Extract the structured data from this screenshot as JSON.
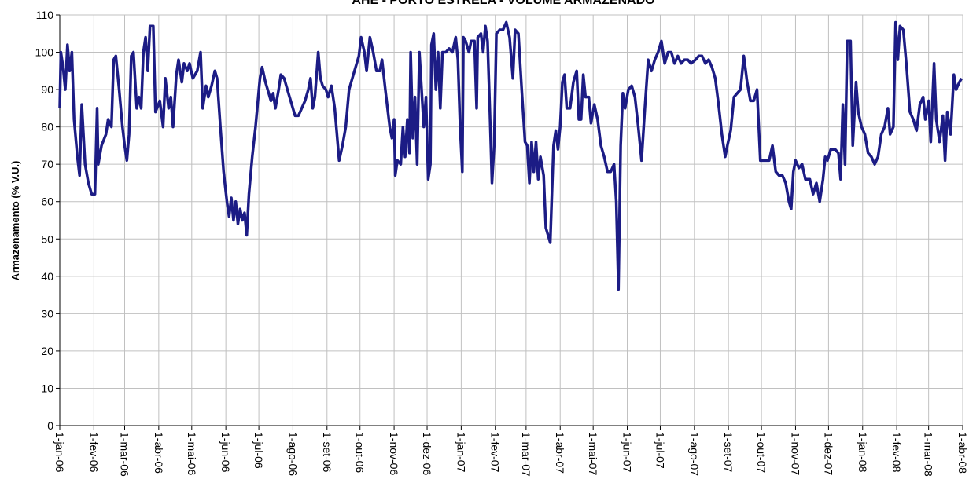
{
  "chart_data": {
    "type": "line",
    "title": "AHE - PORTO ESTRELA - VOLUME ARMAZENADO",
    "y_label": "Armazenamento (% V.U.)",
    "x": [
      "2006-01-01",
      "2006-01-02",
      "2006-01-04",
      "2006-01-06",
      "2006-01-08",
      "2006-01-10",
      "2006-01-12",
      "2006-01-14",
      "2006-01-17",
      "2006-01-19",
      "2006-01-21",
      "2006-01-24",
      "2006-01-27",
      "2006-01-30",
      "2006-02-02",
      "2006-02-04",
      "2006-02-05",
      "2006-02-08",
      "2006-02-12",
      "2006-02-14",
      "2006-02-17",
      "2006-02-19",
      "2006-02-21",
      "2006-02-24",
      "2006-02-27",
      "2006-03-01",
      "2006-03-03",
      "2006-03-05",
      "2006-03-07",
      "2006-03-09",
      "2006-03-12",
      "2006-03-14",
      "2006-03-16",
      "2006-03-18",
      "2006-03-20",
      "2006-03-22",
      "2006-03-24",
      "2006-03-27",
      "2006-03-29",
      "2006-04-02",
      "2006-04-05",
      "2006-04-07",
      "2006-04-10",
      "2006-04-12",
      "2006-04-14",
      "2006-04-17",
      "2006-04-19",
      "2006-04-22",
      "2006-04-24",
      "2006-04-27",
      "2006-04-29",
      "2006-05-02",
      "2006-05-06",
      "2006-05-09",
      "2006-05-11",
      "2006-05-14",
      "2006-05-16",
      "2006-05-19",
      "2006-05-22",
      "2006-05-24",
      "2006-05-27",
      "2006-05-30",
      "2006-06-02",
      "2006-06-04",
      "2006-06-06",
      "2006-06-08",
      "2006-06-10",
      "2006-06-12",
      "2006-06-14",
      "2006-06-16",
      "2006-06-18",
      "2006-06-20",
      "2006-06-22",
      "2006-06-25",
      "2006-06-28",
      "2006-07-02",
      "2006-07-04",
      "2006-07-07",
      "2006-07-10",
      "2006-07-12",
      "2006-07-14",
      "2006-07-16",
      "2006-07-19",
      "2006-07-21",
      "2006-07-24",
      "2006-07-27",
      "2006-07-30",
      "2006-08-03",
      "2006-08-06",
      "2006-08-09",
      "2006-08-12",
      "2006-08-15",
      "2006-08-17",
      "2006-08-19",
      "2006-08-21",
      "2006-08-24",
      "2006-08-26",
      "2006-08-28",
      "2006-08-31",
      "2006-09-02",
      "2006-09-05",
      "2006-09-08",
      "2006-09-10",
      "2006-09-12",
      "2006-09-15",
      "2006-09-18",
      "2006-09-21",
      "2006-09-24",
      "2006-09-27",
      "2006-09-30",
      "2006-10-02",
      "2006-10-05",
      "2006-10-07",
      "2006-10-10",
      "2006-10-13",
      "2006-10-16",
      "2006-10-19",
      "2006-10-21",
      "2006-10-24",
      "2006-10-26",
      "2006-10-28",
      "2006-10-30",
      "2006-11-01",
      "2006-11-02",
      "2006-11-04",
      "2006-11-07",
      "2006-11-09",
      "2006-11-11",
      "2006-11-13",
      "2006-11-15",
      "2006-11-16",
      "2006-11-18",
      "2006-11-20",
      "2006-11-22",
      "2006-11-24",
      "2006-11-26",
      "2006-11-28",
      "2006-11-30",
      "2006-12-02",
      "2006-12-04",
      "2006-12-05",
      "2006-12-07",
      "2006-12-09",
      "2006-12-11",
      "2006-12-13",
      "2006-12-15",
      "2006-12-18",
      "2006-12-21",
      "2006-12-24",
      "2006-12-27",
      "2006-12-29",
      "2006-12-31",
      "2007-01-02",
      "2007-01-03",
      "2007-01-05",
      "2007-01-08",
      "2007-01-10",
      "2007-01-13",
      "2007-01-15",
      "2007-01-16",
      "2007-01-19",
      "2007-01-21",
      "2007-01-23",
      "2007-01-25",
      "2007-01-27",
      "2007-01-29",
      "2007-01-31",
      "2007-02-02",
      "2007-02-05",
      "2007-02-08",
      "2007-02-11",
      "2007-02-14",
      "2007-02-17",
      "2007-02-19",
      "2007-02-22",
      "2007-02-25",
      "2007-02-28",
      "2007-03-02",
      "2007-03-04",
      "2007-03-06",
      "2007-03-08",
      "2007-03-10",
      "2007-03-12",
      "2007-03-14",
      "2007-03-17",
      "2007-03-19",
      "2007-03-21",
      "2007-03-23",
      "2007-03-26",
      "2007-03-28",
      "2007-03-30",
      "2007-04-01",
      "2007-04-03",
      "2007-04-05",
      "2007-04-07",
      "2007-04-10",
      "2007-04-13",
      "2007-04-16",
      "2007-04-18",
      "2007-04-20",
      "2007-04-22",
      "2007-04-24",
      "2007-04-27",
      "2007-04-29",
      "2007-05-02",
      "2007-05-05",
      "2007-05-08",
      "2007-05-11",
      "2007-05-14",
      "2007-05-17",
      "2007-05-20",
      "2007-05-22",
      "2007-05-24",
      "2007-05-26",
      "2007-05-28",
      "2007-05-30",
      "2007-06-02",
      "2007-06-05",
      "2007-06-08",
      "2007-06-11",
      "2007-06-14",
      "2007-06-17",
      "2007-06-20",
      "2007-06-23",
      "2007-06-26",
      "2007-06-29",
      "2007-07-02",
      "2007-07-05",
      "2007-07-08",
      "2007-07-11",
      "2007-07-14",
      "2007-07-17",
      "2007-07-20",
      "2007-07-23",
      "2007-07-26",
      "2007-07-29",
      "2007-08-02",
      "2007-08-05",
      "2007-08-08",
      "2007-08-11",
      "2007-08-14",
      "2007-08-17",
      "2007-08-20",
      "2007-08-23",
      "2007-08-26",
      "2007-08-29",
      "2007-08-31",
      "2007-09-03",
      "2007-09-06",
      "2007-09-09",
      "2007-09-12",
      "2007-09-15",
      "2007-09-18",
      "2007-09-21",
      "2007-09-24",
      "2007-09-27",
      "2007-09-30",
      "2007-10-04",
      "2007-10-08",
      "2007-10-11",
      "2007-10-14",
      "2007-10-17",
      "2007-10-20",
      "2007-10-23",
      "2007-10-26",
      "2007-10-28",
      "2007-10-30",
      "2007-11-01",
      "2007-11-04",
      "2007-11-07",
      "2007-11-10",
      "2007-11-14",
      "2007-11-17",
      "2007-11-20",
      "2007-11-23",
      "2007-11-26",
      "2007-11-28",
      "2007-11-30",
      "2007-12-03",
      "2007-12-07",
      "2007-12-10",
      "2007-12-12",
      "2007-12-14",
      "2007-12-16",
      "2007-12-18",
      "2007-12-21",
      "2007-12-23",
      "2007-12-26",
      "2007-12-28",
      "2007-12-31",
      "2008-01-03",
      "2008-01-06",
      "2008-01-09",
      "2008-01-12",
      "2008-01-15",
      "2008-01-18",
      "2008-01-21",
      "2008-01-24",
      "2008-01-26",
      "2008-01-29",
      "2008-01-31",
      "2008-02-02",
      "2008-02-04",
      "2008-02-07",
      "2008-02-10",
      "2008-02-13",
      "2008-02-16",
      "2008-02-19",
      "2008-02-22",
      "2008-02-25",
      "2008-02-27",
      "2008-03-01",
      "2008-03-03",
      "2008-03-06",
      "2008-03-08",
      "2008-03-11",
      "2008-03-14",
      "2008-03-16",
      "2008-03-18",
      "2008-03-21",
      "2008-03-24",
      "2008-03-26",
      "2008-03-29",
      "2008-03-31"
    ],
    "series": [
      {
        "name": "Armazenamento",
        "color": "#1c1c85",
        "values": [
          85,
          100,
          96,
          90,
          102,
          95,
          100,
          82,
          72,
          67,
          86,
          70,
          65,
          62,
          62,
          85,
          70,
          75,
          78,
          82,
          80,
          98,
          99,
          90,
          80,
          75,
          71,
          78,
          99,
          100,
          85,
          88,
          85,
          100,
          104,
          95,
          107,
          107,
          84,
          87,
          80,
          93,
          85,
          88,
          80,
          94,
          98,
          92,
          97,
          95,
          97,
          93,
          95,
          100,
          85,
          91,
          88,
          91,
          95,
          93,
          80,
          68,
          60,
          56,
          61,
          55,
          60,
          54,
          58,
          55,
          57,
          51,
          62,
          72,
          80,
          93,
          96,
          92,
          89,
          87,
          89,
          85,
          90,
          94,
          93,
          90,
          87,
          83,
          83,
          85,
          87,
          90,
          93,
          85,
          88,
          100,
          93,
          91,
          90,
          88,
          91,
          85,
          78,
          71,
          75,
          80,
          90,
          93,
          96,
          99,
          104,
          100,
          95,
          104,
          100,
          95,
          95,
          98,
          90,
          85,
          80,
          77,
          82,
          67,
          71,
          70,
          80,
          72,
          82,
          73,
          100,
          77,
          88,
          70,
          100,
          90,
          80,
          88,
          66,
          70,
          102,
          105,
          90,
          100,
          85,
          100,
          100,
          101,
          100,
          104,
          98,
          80,
          68,
          104,
          103,
          100,
          103,
          103,
          85,
          104,
          105,
          100,
          107,
          103,
          85,
          65,
          75,
          105,
          106,
          106,
          108,
          104,
          93,
          106,
          105,
          90,
          76,
          75,
          65,
          76,
          68,
          76,
          66,
          72,
          67,
          53,
          51,
          49,
          75,
          79,
          74,
          80,
          92,
          94,
          85,
          85,
          92,
          95,
          82,
          82,
          94,
          88,
          88,
          81,
          86,
          82,
          75,
          72,
          68,
          68,
          70,
          60,
          36.5,
          75,
          89,
          85,
          90,
          91,
          88,
          80,
          71,
          85,
          98,
          95,
          98,
          100,
          103,
          97,
          100,
          100,
          97,
          99,
          97,
          98,
          98,
          97,
          98,
          99,
          99,
          97,
          98,
          96,
          93,
          86,
          78,
          72,
          75,
          79,
          88,
          89,
          90,
          99,
          92,
          87,
          87,
          90,
          71,
          71,
          71,
          75,
          68,
          67,
          67,
          65,
          60,
          58,
          68,
          71,
          69,
          70,
          66,
          66,
          62,
          65,
          60,
          66,
          72,
          71,
          74,
          74,
          73,
          66,
          86,
          70,
          103,
          103,
          75,
          92,
          84,
          80,
          78,
          73,
          72,
          70,
          72,
          78,
          80,
          85,
          78,
          80,
          108,
          98,
          107,
          106,
          96,
          84,
          82,
          79,
          86,
          88,
          82,
          87,
          76,
          97,
          82,
          76,
          83,
          71,
          84,
          78,
          94,
          90,
          92,
          93
        ]
      }
    ],
    "xlim": [
      "2006-01-01",
      "2008-04-01"
    ],
    "xticks": [
      {
        "value": "2006-01-01",
        "label": "1-jan-06"
      },
      {
        "value": "2006-02-01",
        "label": "1-fev-06"
      },
      {
        "value": "2006-03-01",
        "label": "1-mar-06"
      },
      {
        "value": "2006-04-01",
        "label": "1-abr-06"
      },
      {
        "value": "2006-05-01",
        "label": "1-mai-06"
      },
      {
        "value": "2006-06-01",
        "label": "1-jun-06"
      },
      {
        "value": "2006-07-01",
        "label": "1-jul-06"
      },
      {
        "value": "2006-08-01",
        "label": "1-ago-06"
      },
      {
        "value": "2006-09-01",
        "label": "1-set-06"
      },
      {
        "value": "2006-10-01",
        "label": "1-out-06"
      },
      {
        "value": "2006-11-01",
        "label": "1-nov-06"
      },
      {
        "value": "2006-12-01",
        "label": "1-dez-06"
      },
      {
        "value": "2007-01-01",
        "label": "1-jan-07"
      },
      {
        "value": "2007-02-01",
        "label": "1-fev-07"
      },
      {
        "value": "2007-03-01",
        "label": "1-mar-07"
      },
      {
        "value": "2007-04-01",
        "label": "1-abr-07"
      },
      {
        "value": "2007-05-01",
        "label": "1-mai-07"
      },
      {
        "value": "2007-06-01",
        "label": "1-jun-07"
      },
      {
        "value": "2007-07-01",
        "label": "1-jul-07"
      },
      {
        "value": "2007-08-01",
        "label": "1-ago-07"
      },
      {
        "value": "2007-09-01",
        "label": "1-set-07"
      },
      {
        "value": "2007-10-01",
        "label": "1-out-07"
      },
      {
        "value": "2007-11-01",
        "label": "1-nov-07"
      },
      {
        "value": "2007-12-01",
        "label": "1-dez-07"
      },
      {
        "value": "2008-01-01",
        "label": "1-jan-08"
      },
      {
        "value": "2008-02-01",
        "label": "1-fev-08"
      },
      {
        "value": "2008-03-01",
        "label": "1-mar-08"
      },
      {
        "value": "2008-04-01",
        "label": "1-abr-08"
      }
    ],
    "ylim": [
      0,
      110
    ],
    "yticks": [
      0,
      10,
      20,
      30,
      40,
      50,
      60,
      70,
      80,
      90,
      100,
      110
    ],
    "grid": true
  }
}
